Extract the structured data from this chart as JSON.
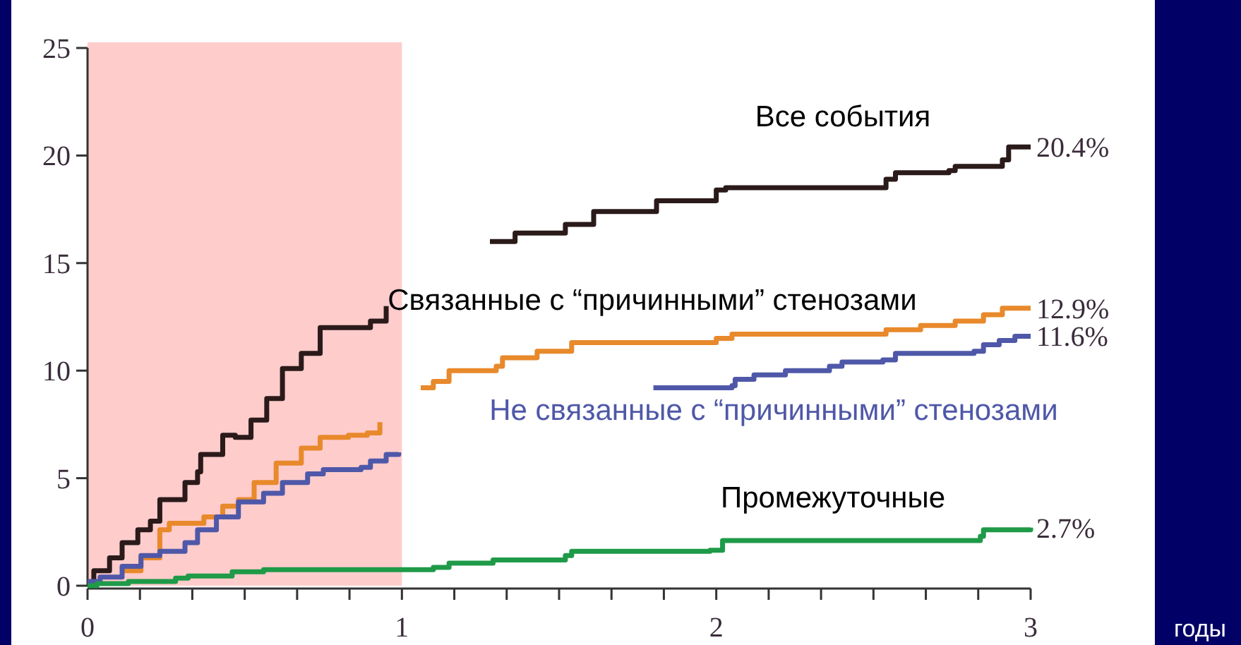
{
  "chart_data": {
    "type": "step",
    "xlim": [
      0,
      3
    ],
    "ylim": [
      0,
      25
    ],
    "xticks": [
      0,
      {
        "value": 0.1667,
        "label": null
      },
      {
        "value": 0.3333,
        "label": null
      },
      {
        "value": 0.5,
        "label": null
      },
      {
        "value": 0.6667,
        "label": null
      },
      {
        "value": 0.8333,
        "label": null
      },
      1,
      {
        "value": 1.1667,
        "label": null
      },
      {
        "value": 1.3333,
        "label": null
      },
      {
        "value": 1.5,
        "label": null
      },
      {
        "value": 1.6667,
        "label": null
      },
      {
        "value": 1.8333,
        "label": null
      },
      2,
      {
        "value": 2.1667,
        "label": null
      },
      {
        "value": 2.3333,
        "label": null
      },
      {
        "value": 2.5,
        "label": null
      },
      {
        "value": 2.6667,
        "label": null
      },
      {
        "value": 2.8333,
        "label": null
      },
      3
    ],
    "yticks": [
      0,
      5,
      10,
      15,
      20,
      25
    ],
    "grid": false,
    "bands": [
      {
        "axis": "x",
        "from": 0,
        "to": 1,
        "color": "#ffcccc"
      }
    ],
    "series": [
      {
        "name": "Все события",
        "color": "#2b1a1a",
        "x": [
          0,
          0.02,
          0.07,
          0.11,
          0.16,
          0.2,
          0.23,
          0.31,
          0.35,
          0.36,
          0.43,
          0.47,
          0.52,
          0.57,
          0.62,
          0.68,
          0.74,
          0.81,
          0.9,
          0.95,
          0.97,
          1.28,
          1.36,
          1.52,
          1.61,
          1.81,
          2.0,
          2.03,
          2.36,
          2.54,
          2.57,
          2.74,
          2.76,
          2.91,
          2.93,
          3
        ],
        "values": [
          0,
          0.7,
          1.3,
          2.0,
          2.6,
          3.0,
          4.0,
          4.8,
          5.3,
          6.1,
          7.0,
          6.9,
          7.7,
          8.7,
          10.1,
          10.8,
          12.0,
          12.0,
          12.3,
          13.0,
          null,
          16.0,
          16.4,
          16.8,
          17.4,
          17.9,
          18.4,
          18.5,
          18.5,
          18.9,
          19.2,
          19.3,
          19.5,
          19.8,
          20.4,
          20.4
        ],
        "value_labels": [
          null,
          null,
          null,
          null,
          null,
          null,
          null,
          null,
          null,
          null,
          null,
          null,
          null,
          null,
          null,
          null,
          null,
          null,
          null,
          null,
          null,
          null,
          null,
          null,
          null,
          null,
          null,
          null,
          null,
          null,
          null,
          null,
          null,
          null,
          null,
          "20.4%"
        ]
      },
      {
        "name": "Связанные с “причинными” стенозами",
        "color": "#e8892b",
        "x": [
          0.11,
          0.17,
          0.23,
          0.26,
          0.37,
          0.43,
          0.48,
          0.53,
          0.6,
          0.68,
          0.74,
          0.83,
          0.89,
          0.93,
          0.95,
          1.06,
          1.1,
          1.15,
          1.3,
          1.32,
          1.43,
          1.54,
          2.0,
          2.05,
          2.53,
          2.54,
          2.65,
          2.76,
          2.85,
          2.91,
          3
        ],
        "values": [
          0.7,
          1.3,
          2.6,
          2.9,
          3.2,
          3.7,
          4.0,
          4.8,
          5.7,
          6.4,
          6.9,
          7.0,
          7.1,
          7.6,
          null,
          9.2,
          9.5,
          10.0,
          10.2,
          10.6,
          10.9,
          11.3,
          11.5,
          11.7,
          11.7,
          11.9,
          12.1,
          12.3,
          12.6,
          12.9,
          12.9
        ],
        "value_labels": [
          null,
          null,
          null,
          null,
          null,
          null,
          null,
          null,
          null,
          null,
          null,
          null,
          null,
          null,
          null,
          null,
          null,
          null,
          null,
          null,
          null,
          null,
          null,
          null,
          null,
          null,
          null,
          null,
          null,
          null,
          "12.9%"
        ]
      },
      {
        "name": "Не связанные с “причинными” стенозами",
        "color": "#4f58a8",
        "x": [
          0,
          0.04,
          0.11,
          0.17,
          0.23,
          0.31,
          0.35,
          0.41,
          0.48,
          0.56,
          0.62,
          0.7,
          0.75,
          0.87,
          0.9,
          0.95,
          0.99,
          1.0,
          1.8,
          2.05,
          2.06,
          2.12,
          2.22,
          2.36,
          2.4,
          2.53,
          2.57,
          2.82,
          2.85,
          2.9,
          2.95,
          3
        ],
        "values": [
          0.2,
          0.4,
          0.9,
          1.4,
          1.6,
          2.0,
          2.6,
          3.2,
          3.9,
          4.3,
          4.8,
          5.2,
          5.4,
          5.5,
          5.8,
          6.1,
          6.2,
          null,
          9.2,
          9.3,
          9.6,
          9.8,
          10.0,
          10.2,
          10.4,
          10.5,
          10.8,
          10.9,
          11.2,
          11.4,
          11.6,
          11.6
        ],
        "value_labels": [
          null,
          null,
          null,
          null,
          null,
          null,
          null,
          null,
          null,
          null,
          null,
          null,
          null,
          null,
          null,
          null,
          null,
          null,
          null,
          null,
          null,
          null,
          null,
          null,
          null,
          null,
          null,
          null,
          null,
          null,
          null,
          "11.6%"
        ]
      },
      {
        "name": "Промежуточные",
        "color": "#1f9a48",
        "x": [
          0,
          0.03,
          0.13,
          0.28,
          0.32,
          0.46,
          0.56,
          1.1,
          1.15,
          1.29,
          1.52,
          1.54,
          1.98,
          2.02,
          2.73,
          2.84,
          2.85,
          3
        ],
        "values": [
          0,
          0.1,
          0.2,
          0.35,
          0.45,
          0.65,
          0.75,
          0.85,
          1.05,
          1.2,
          1.4,
          1.6,
          1.65,
          2.1,
          2.1,
          2.3,
          2.6,
          2.7
        ],
        "value_labels": [
          null,
          null,
          null,
          null,
          null,
          null,
          null,
          null,
          null,
          null,
          null,
          null,
          null,
          null,
          null,
          null,
          null,
          "2.7%"
        ]
      }
    ],
    "annotations": [
      "годы"
    ]
  }
}
